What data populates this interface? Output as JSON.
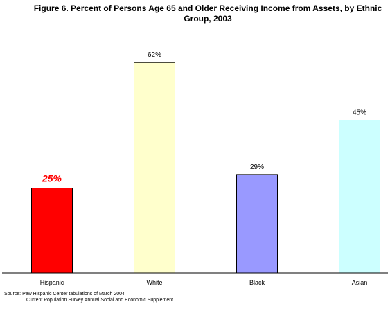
{
  "chart_data": {
    "type": "bar",
    "title_line1": "Figure 6. Percent of Persons Age 65 and Older Receiving Income from Assets, by Ethnic",
    "title_line2": "Group, 2003",
    "categories": [
      "Hispanic",
      "White",
      "Black",
      "Asian"
    ],
    "values": [
      25,
      62,
      29,
      45
    ],
    "value_labels": [
      "25%",
      "62%",
      "29%",
      "45%"
    ],
    "bar_colors": [
      "#ff0000",
      "#ffffcc",
      "#9999ff",
      "#ccffff"
    ],
    "highlight_label_color": "#ff0000",
    "ylim": [
      0,
      100
    ],
    "grid": false,
    "legend": "none"
  },
  "source": {
    "line1": "Source: Pew Hispanic Center tabulations of March 2004",
    "line2": "Current Population Survey Annual Social and Economic Supplement"
  }
}
